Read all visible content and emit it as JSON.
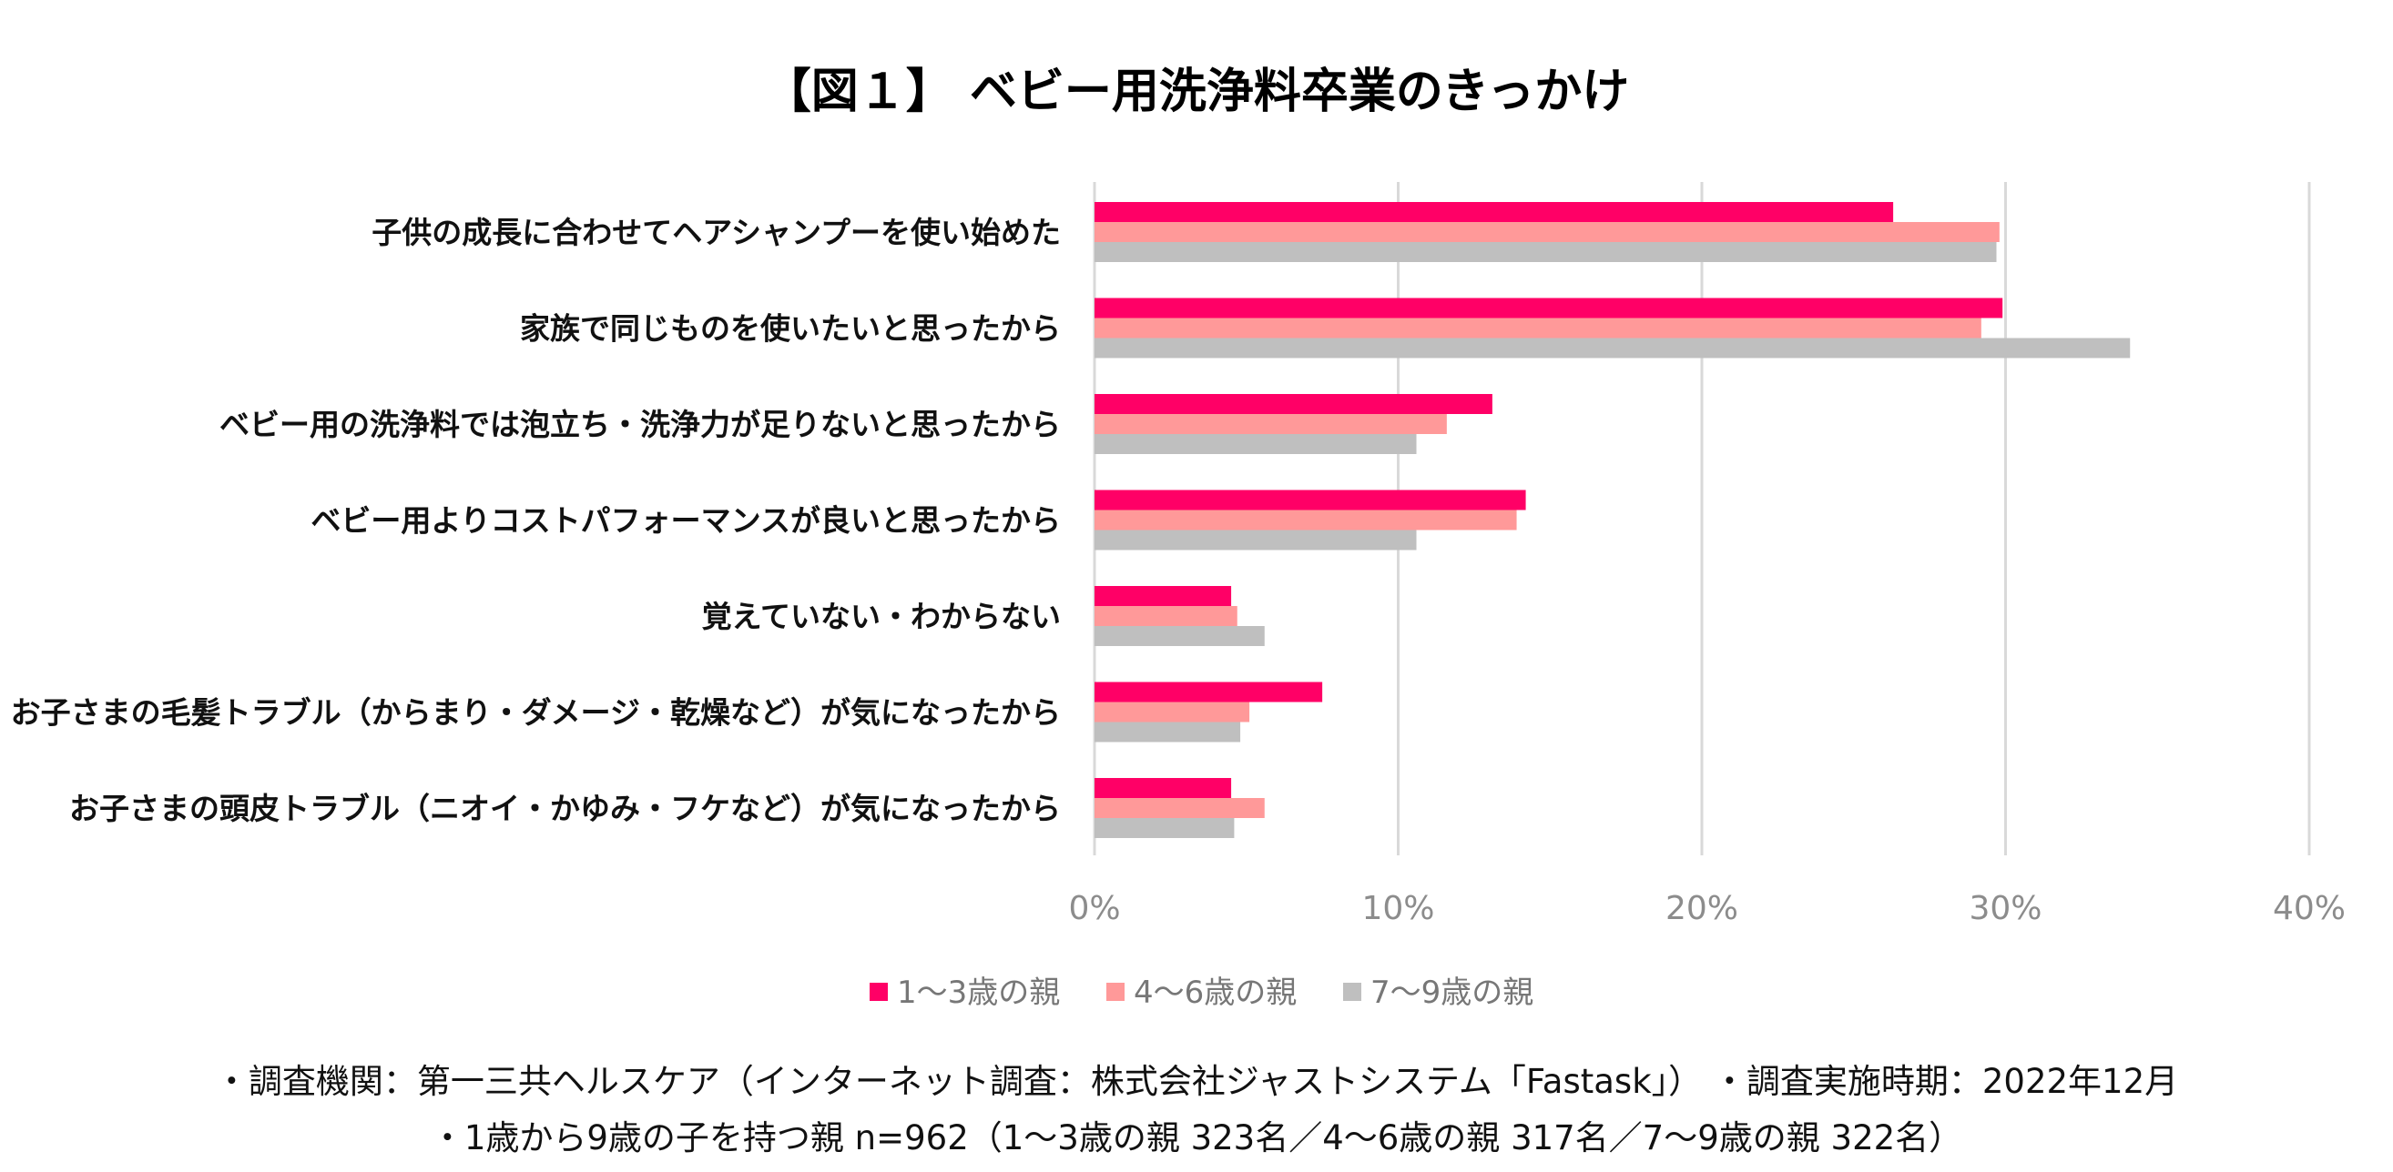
{
  "chart_data": {
    "type": "bar",
    "orientation": "horizontal",
    "title": "【図１】 ベビー用洗浄料卒業のきっかけ",
    "categories": [
      "子供の成長に合わせてヘアシャンプーを使い始めた",
      "家族で同じものを使いたいと思ったから",
      "ベビー用の洗浄料では泡立ち・洗浄力が足りないと思ったから",
      "ベビー用よりコストパフォーマンスが良いと思ったから",
      "覚えていない・わからない",
      "お子さまの毛髪トラブル（からまり・ダメージ・乾燥など）が気になったから",
      "お子さまの頭皮トラブル（ニオイ・かゆみ・フケなど）が気になったから"
    ],
    "series": [
      {
        "name": "1～3歳の親",
        "color": "#ff0066",
        "values": [
          26.3,
          29.9,
          13.1,
          14.2,
          4.5,
          7.5,
          4.5
        ]
      },
      {
        "name": "4～6歳の親",
        "color": "#ff9999",
        "values": [
          29.8,
          29.2,
          11.6,
          13.9,
          4.7,
          5.1,
          5.6
        ]
      },
      {
        "name": "7～9歳の親",
        "color": "#bfbfbf",
        "values": [
          29.7,
          34.1,
          10.6,
          10.6,
          5.6,
          4.8,
          4.6
        ]
      }
    ],
    "xlim": [
      0,
      40
    ],
    "xticks": [
      "0%",
      "10%",
      "20%",
      "30%",
      "40%"
    ],
    "xtick_values": [
      0,
      10,
      20,
      30,
      40
    ],
    "grid": true,
    "legend_position": "bottom",
    "xlabel": "",
    "ylabel": ""
  },
  "notes": [
    "・調査機関：第一三共ヘルスケア（インターネット調査：株式会社ジャストシステム「Fastask」） ・調査実施時期：2022年12月",
    "・1歳から9歳の子を持つ親 n=962（1～3歳の親 323名／4～6歳の親 317名／7～9歳の親 322名）"
  ]
}
